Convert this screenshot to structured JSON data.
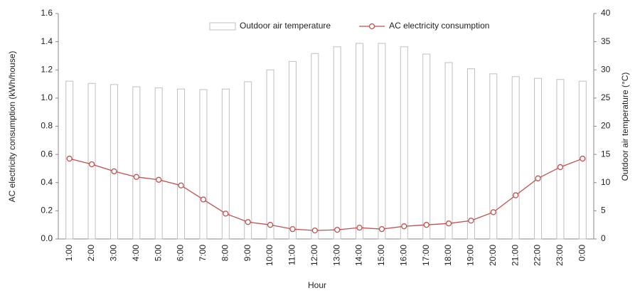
{
  "chart_data": {
    "type": "bar",
    "x_label": "Hour",
    "y_label": "AC electricity consumption (kWh/house)",
    "y2_label": "Outdoor air temperature (°C)",
    "categories": [
      "1:00",
      "2:00",
      "3:00",
      "4:00",
      "5:00",
      "6:00",
      "7:00",
      "8:00",
      "9:00",
      "10:00",
      "11:00",
      "12:00",
      "13:00",
      "14:00",
      "15:00",
      "16:00",
      "17:00",
      "18:00",
      "19:00",
      "20:00",
      "21:00",
      "22:00",
      "23:00",
      "0:00"
    ],
    "series": [
      {
        "name": "Outdoor air temperature",
        "type": "bar",
        "axis": "y2",
        "color": "#bfbfbf",
        "values": [
          28,
          27.6,
          27.4,
          27,
          26.8,
          26.6,
          26.5,
          26.6,
          27.9,
          30,
          31.5,
          32.9,
          34.1,
          34.7,
          34.7,
          34.1,
          32.8,
          31.3,
          30.2,
          29.3,
          28.8,
          28.5,
          28.3,
          28
        ]
      },
      {
        "name": "AC electricity consumption",
        "type": "line",
        "axis": "y",
        "color": "#c0504d",
        "values": [
          0.57,
          0.53,
          0.48,
          0.44,
          0.42,
          0.38,
          0.28,
          0.18,
          0.12,
          0.1,
          0.07,
          0.06,
          0.065,
          0.08,
          0.07,
          0.09,
          0.1,
          0.11,
          0.13,
          0.19,
          0.31,
          0.43,
          0.51,
          0.57
        ]
      }
    ],
    "ylim": [
      0,
      1.6
    ],
    "yticks": [
      {
        "value": 0,
        "label": "0.0"
      },
      0.2,
      0.4,
      0.6,
      0.8,
      {
        "value": 1,
        "label": "1.0"
      },
      1.2,
      1.4,
      1.6
    ],
    "y2lim": [
      0,
      40
    ],
    "y2ticks": [
      0,
      5,
      10,
      15,
      20,
      25,
      30,
      35,
      40
    ],
    "grid": false,
    "legend": "top"
  }
}
